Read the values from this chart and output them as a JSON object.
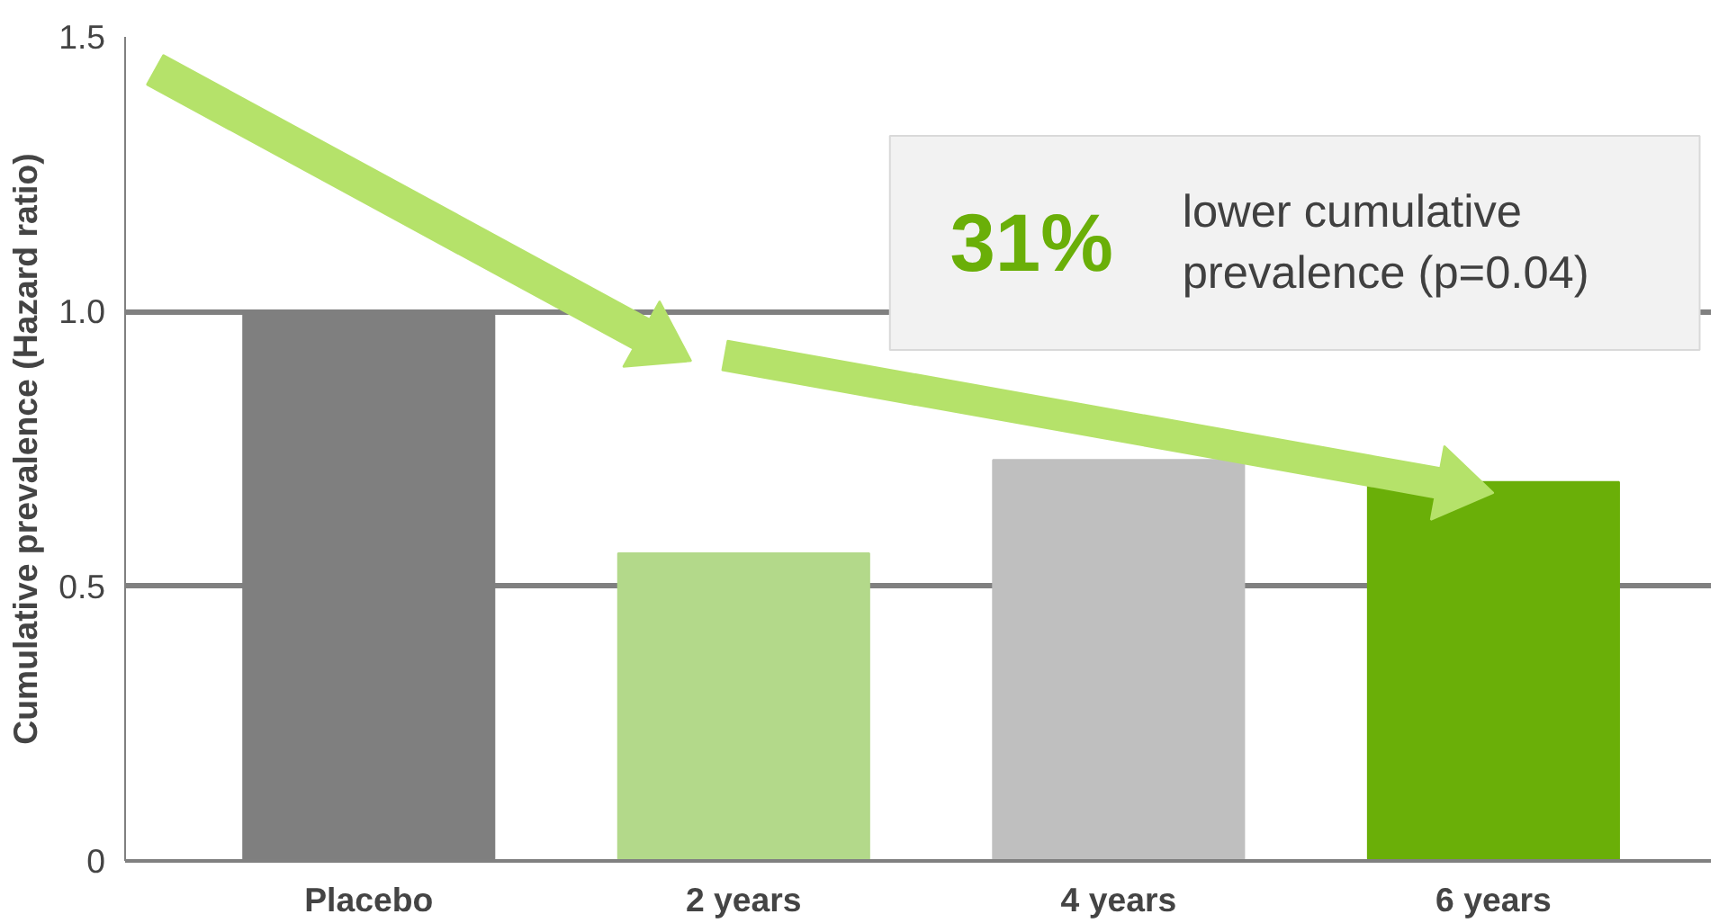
{
  "chart_data": {
    "type": "bar",
    "ylabel": "Cumulative prevalence (Hazard ratio)",
    "categories": [
      "Placebo",
      "2 years",
      "4 years",
      "6 years"
    ],
    "values": [
      1.0,
      0.56,
      0.73,
      0.69
    ],
    "colors": [
      "#7f7f7f",
      "#b3d98a",
      "#bfbfbf",
      "#6aaf08"
    ],
    "ylim": [
      0,
      1.5
    ],
    "yticks": [
      0,
      {
        "value": 0.5,
        "label": "0.5"
      },
      {
        "value": 1.0,
        "label": "1.0"
      },
      {
        "value": 1.5,
        "label": "1.5"
      }
    ],
    "grid": "y",
    "annotations": [
      "31%",
      "lower cumulative\nprevalence (p=0.04)"
    ]
  }
}
